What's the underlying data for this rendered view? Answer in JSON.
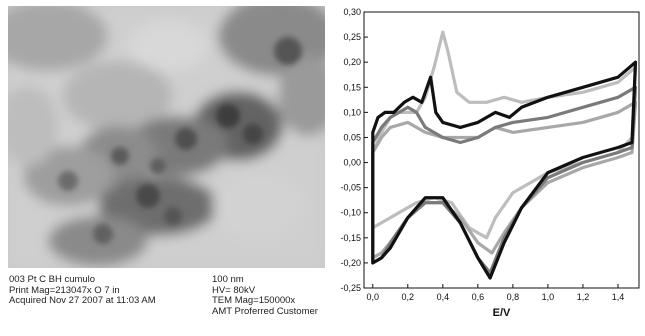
{
  "micrograph": {
    "caption_left": [
      "003 Pt C BH cumulo",
      "Print Mag=213047x O 7 in",
      "Acquired Nov 27 2007 at 11:03 AM"
    ],
    "caption_right": [
      "100 nm",
      "HV= 80kV",
      "TEM Mag=150000x",
      "AMT Proferred Customer"
    ]
  },
  "chart_data": {
    "type": "line",
    "title": "",
    "xlabel": "E/V",
    "ylabel": "",
    "xlim": [
      -0.05,
      1.52
    ],
    "ylim": [
      -0.25,
      0.3
    ],
    "xticks": [
      "0,0",
      "0,2",
      "0,4",
      "0,6",
      "0,8",
      "1,0",
      "1,2",
      "1,4"
    ],
    "xtick_values": [
      0.0,
      0.2,
      0.4,
      0.6,
      0.8,
      1.0,
      1.2,
      1.4
    ],
    "yticks": [
      "-0,25",
      "-0,20",
      "-0,15",
      "-0,10",
      "-0,05",
      "0,00",
      "0,05",
      "0,10",
      "0,15",
      "0,20",
      "0,25",
      "0,30"
    ],
    "ytick_values": [
      -0.25,
      -0.2,
      -0.15,
      -0.1,
      -0.05,
      0.0,
      0.05,
      0.1,
      0.15,
      0.2,
      0.25,
      0.3
    ],
    "grid": false,
    "series": [
      {
        "color": "#bdbdbd",
        "anodic": [
          [
            0.0,
            0.02
          ],
          [
            0.05,
            0.06
          ],
          [
            0.1,
            0.09
          ],
          [
            0.15,
            0.1
          ],
          [
            0.2,
            0.1
          ],
          [
            0.25,
            0.1
          ],
          [
            0.3,
            0.13
          ],
          [
            0.35,
            0.19
          ],
          [
            0.4,
            0.26
          ],
          [
            0.43,
            0.22
          ],
          [
            0.48,
            0.14
          ],
          [
            0.55,
            0.12
          ],
          [
            0.65,
            0.12
          ],
          [
            0.75,
            0.13
          ],
          [
            0.85,
            0.12
          ],
          [
            1.0,
            0.13
          ],
          [
            1.2,
            0.14
          ],
          [
            1.4,
            0.16
          ],
          [
            1.5,
            0.19
          ]
        ],
        "cathodic": [
          [
            1.5,
            0.19
          ],
          [
            1.48,
            0.05
          ],
          [
            1.4,
            0.02
          ],
          [
            1.2,
            0.0
          ],
          [
            1.0,
            -0.02
          ],
          [
            0.8,
            -0.06
          ],
          [
            0.7,
            -0.11
          ],
          [
            0.65,
            -0.15
          ],
          [
            0.55,
            -0.13
          ],
          [
            0.45,
            -0.08
          ],
          [
            0.35,
            -0.07
          ],
          [
            0.25,
            -0.08
          ],
          [
            0.15,
            -0.1
          ],
          [
            0.05,
            -0.12
          ],
          [
            0.0,
            -0.13
          ]
        ]
      },
      {
        "color": "#a8a8a8",
        "anodic": [
          [
            0.0,
            0.02
          ],
          [
            0.05,
            0.05
          ],
          [
            0.1,
            0.07
          ],
          [
            0.2,
            0.08
          ],
          [
            0.3,
            0.06
          ],
          [
            0.4,
            0.05
          ],
          [
            0.5,
            0.05
          ],
          [
            0.6,
            0.05
          ],
          [
            0.7,
            0.07
          ],
          [
            0.8,
            0.06
          ],
          [
            1.0,
            0.07
          ],
          [
            1.2,
            0.08
          ],
          [
            1.4,
            0.1
          ],
          [
            1.5,
            0.12
          ]
        ],
        "cathodic": [
          [
            1.5,
            0.12
          ],
          [
            1.48,
            0.02
          ],
          [
            1.4,
            0.01
          ],
          [
            1.2,
            -0.01
          ],
          [
            1.0,
            -0.04
          ],
          [
            0.85,
            -0.09
          ],
          [
            0.75,
            -0.14
          ],
          [
            0.68,
            -0.18
          ],
          [
            0.6,
            -0.16
          ],
          [
            0.5,
            -0.11
          ],
          [
            0.4,
            -0.08
          ],
          [
            0.3,
            -0.08
          ],
          [
            0.2,
            -0.11
          ],
          [
            0.1,
            -0.16
          ],
          [
            0.05,
            -0.18
          ],
          [
            0.0,
            -0.19
          ]
        ]
      },
      {
        "color": "#7a7a7a",
        "anodic": [
          [
            0.0,
            0.04
          ],
          [
            0.05,
            0.07
          ],
          [
            0.1,
            0.09
          ],
          [
            0.15,
            0.1
          ],
          [
            0.2,
            0.11
          ],
          [
            0.25,
            0.1
          ],
          [
            0.3,
            0.07
          ],
          [
            0.4,
            0.05
          ],
          [
            0.5,
            0.04
          ],
          [
            0.6,
            0.05
          ],
          [
            0.7,
            0.07
          ],
          [
            0.8,
            0.08
          ],
          [
            1.0,
            0.09
          ],
          [
            1.2,
            0.11
          ],
          [
            1.4,
            0.13
          ],
          [
            1.5,
            0.15
          ]
        ],
        "cathodic": [
          [
            1.5,
            0.15
          ],
          [
            1.48,
            0.03
          ],
          [
            1.4,
            0.02
          ],
          [
            1.2,
            0.0
          ],
          [
            1.0,
            -0.03
          ],
          [
            0.85,
            -0.09
          ],
          [
            0.75,
            -0.15
          ],
          [
            0.67,
            -0.22
          ],
          [
            0.6,
            -0.19
          ],
          [
            0.5,
            -0.12
          ],
          [
            0.4,
            -0.08
          ],
          [
            0.3,
            -0.08
          ],
          [
            0.2,
            -0.11
          ],
          [
            0.1,
            -0.16
          ],
          [
            0.05,
            -0.19
          ],
          [
            0.0,
            -0.2
          ]
        ]
      },
      {
        "color": "#111111",
        "anodic": [
          [
            0.0,
            0.06
          ],
          [
            0.03,
            0.09
          ],
          [
            0.07,
            0.1
          ],
          [
            0.12,
            0.1
          ],
          [
            0.18,
            0.12
          ],
          [
            0.23,
            0.13
          ],
          [
            0.28,
            0.12
          ],
          [
            0.33,
            0.17
          ],
          [
            0.36,
            0.1
          ],
          [
            0.4,
            0.08
          ],
          [
            0.5,
            0.07
          ],
          [
            0.6,
            0.08
          ],
          [
            0.7,
            0.1
          ],
          [
            0.78,
            0.09
          ],
          [
            0.85,
            0.11
          ],
          [
            1.0,
            0.13
          ],
          [
            1.2,
            0.15
          ],
          [
            1.4,
            0.17
          ],
          [
            1.5,
            0.2
          ]
        ],
        "cathodic": [
          [
            1.5,
            0.2
          ],
          [
            1.48,
            0.04
          ],
          [
            1.4,
            0.03
          ],
          [
            1.2,
            0.01
          ],
          [
            1.0,
            -0.02
          ],
          [
            0.85,
            -0.09
          ],
          [
            0.75,
            -0.16
          ],
          [
            0.67,
            -0.23
          ],
          [
            0.6,
            -0.19
          ],
          [
            0.5,
            -0.12
          ],
          [
            0.4,
            -0.07
          ],
          [
            0.3,
            -0.07
          ],
          [
            0.2,
            -0.11
          ],
          [
            0.1,
            -0.17
          ],
          [
            0.05,
            -0.19
          ],
          [
            0.0,
            -0.2
          ]
        ]
      }
    ]
  }
}
